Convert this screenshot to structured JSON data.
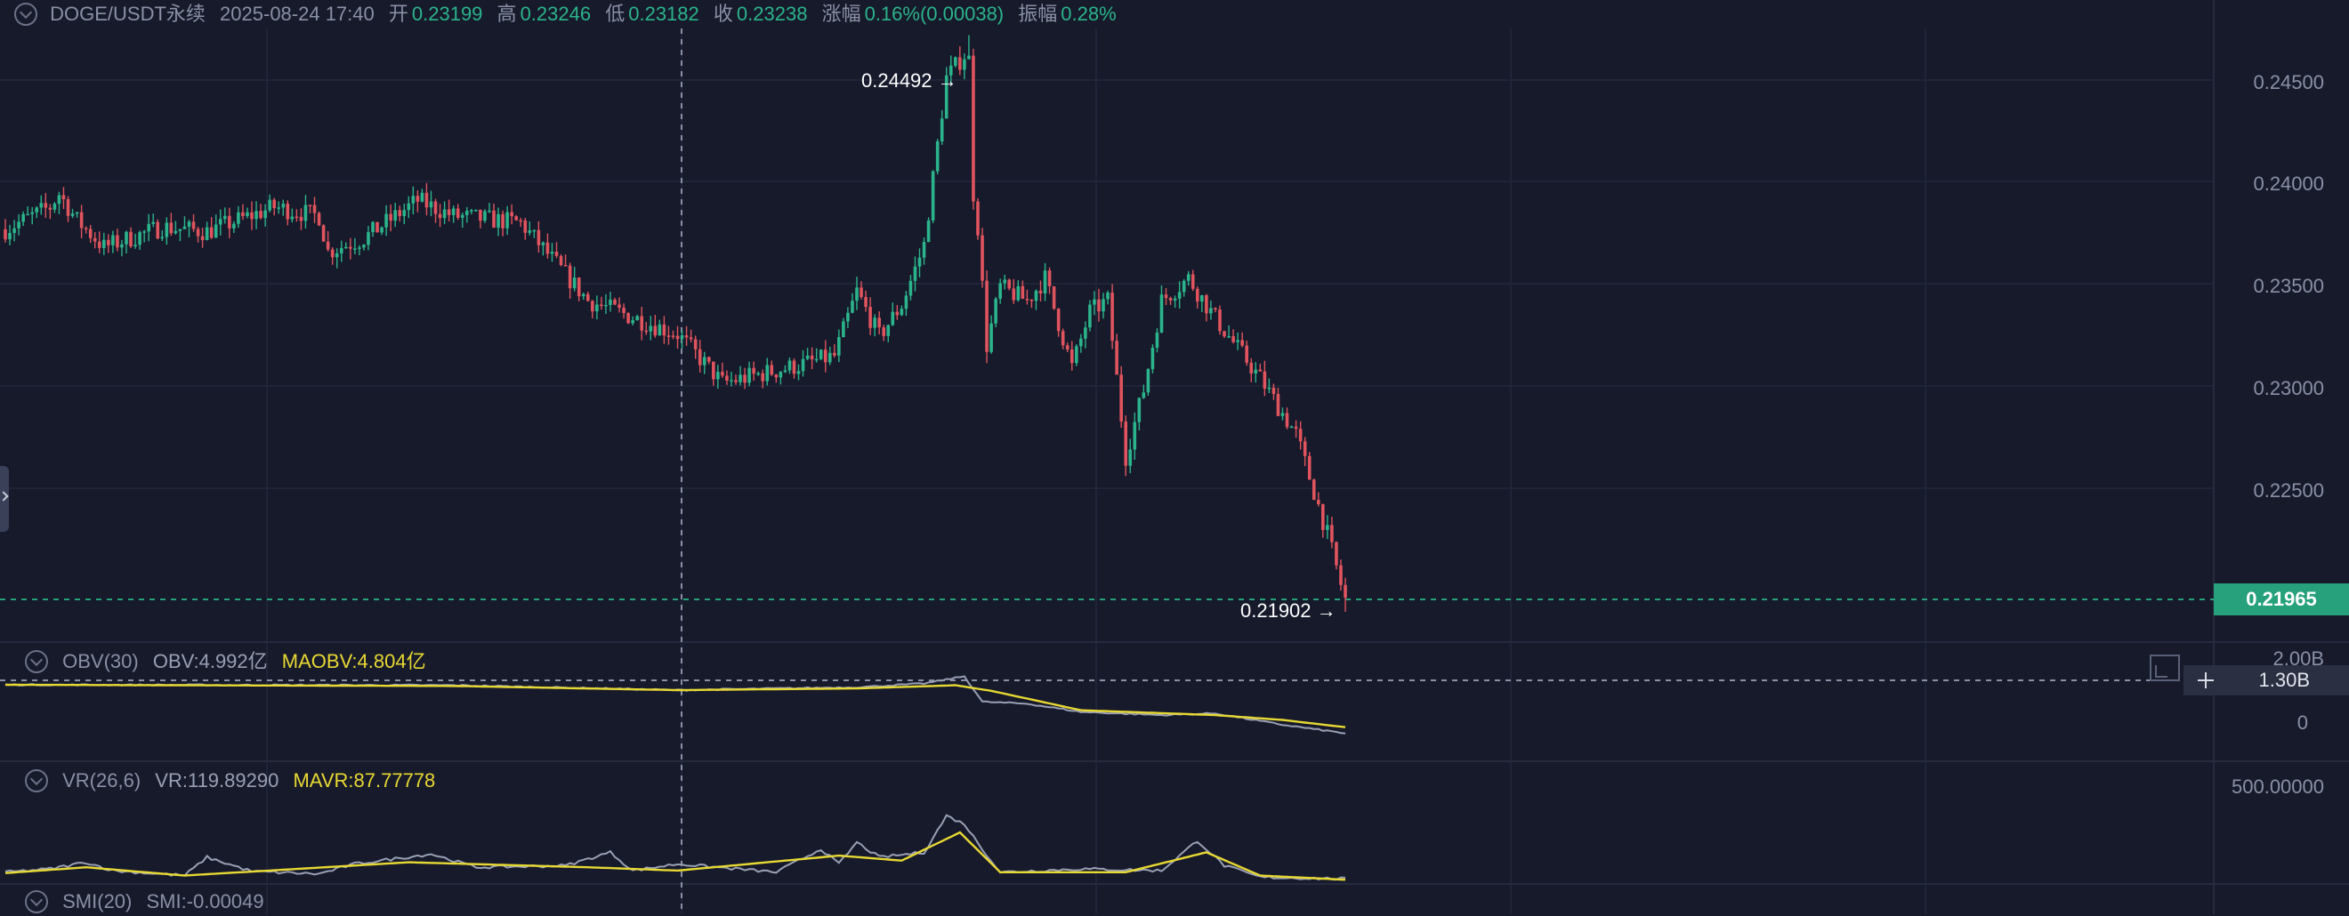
{
  "header": {
    "symbol": "DOGE/USDT永续",
    "datetime": "2025-08-24 17:40",
    "open_label": "开",
    "open": "0.23199",
    "high_label": "高",
    "high": "0.23246",
    "low_label": "低",
    "low": "0.23182",
    "close_label": "收",
    "close": "0.23238",
    "change_label": "涨幅",
    "change": "0.16%(0.00038)",
    "amplitude_label": "振幅",
    "amplitude": "0.28%"
  },
  "indicators": {
    "obv": {
      "name": "OBV(30)",
      "obv_text": "OBV:4.992亿",
      "maobv_text": "MAOBV:4.804亿"
    },
    "vr": {
      "name": "VR(26,6)",
      "vr_text": "VR:119.89290",
      "mavr_text": "MAVR:87.77778"
    },
    "smi": {
      "name": "SMI(20)",
      "smi_text": "SMI:-0.00049"
    }
  },
  "price_axis": {
    "ticks": [
      "0.24500",
      "0.24000",
      "0.23500",
      "0.23000",
      "0.22500"
    ],
    "current_price": "0.21965"
  },
  "obv_axis": {
    "ticks": [
      "2.00B",
      "0"
    ],
    "crosshair_value": "1.30B"
  },
  "vr_axis": {
    "ticks": [
      "500.00000"
    ]
  },
  "extremes": {
    "max_label": "0.24492",
    "min_label": "0.21902"
  },
  "colors": {
    "background": "#161a2b",
    "up": "#2bb48b",
    "down": "#e0545d",
    "obv_line": "#9aa0b4",
    "ma_line": "#e8d832",
    "current_price": "#26a17b"
  },
  "chart_data": {
    "type": "candlestick",
    "candles": 300,
    "close_anchors": [
      [
        0,
        0.2362
      ],
      [
        10,
        0.2372
      ],
      [
        12,
        0.2378
      ],
      [
        16,
        0.2366
      ],
      [
        22,
        0.2354
      ],
      [
        35,
        0.2363
      ],
      [
        45,
        0.2361
      ],
      [
        60,
        0.2372
      ],
      [
        70,
        0.2368
      ],
      [
        72,
        0.2352
      ],
      [
        80,
        0.2358
      ],
      [
        92,
        0.2375
      ],
      [
        100,
        0.2368
      ],
      [
        115,
        0.2365
      ],
      [
        130,
        0.233
      ],
      [
        150,
        0.2315
      ],
      [
        160,
        0.2293
      ],
      [
        175,
        0.23
      ],
      [
        185,
        0.2305
      ],
      [
        190,
        0.2334
      ],
      [
        195,
        0.2314
      ],
      [
        200,
        0.2328
      ],
      [
        205,
        0.2355
      ],
      [
        210,
        0.243
      ],
      [
        215,
        0.2443
      ],
      [
        216,
        0.2378
      ],
      [
        217,
        0.2363
      ],
      [
        219,
        0.231
      ],
      [
        222,
        0.2336
      ],
      [
        228,
        0.233
      ],
      [
        232,
        0.234
      ],
      [
        238,
        0.23
      ],
      [
        242,
        0.2325
      ],
      [
        246,
        0.233
      ],
      [
        250,
        0.226
      ],
      [
        254,
        0.229
      ],
      [
        258,
        0.233
      ],
      [
        264,
        0.234
      ],
      [
        270,
        0.2322
      ],
      [
        280,
        0.2295
      ],
      [
        288,
        0.227
      ],
      [
        295,
        0.2225
      ],
      [
        299,
        0.2195
      ]
    ],
    "high_max": 0.24492,
    "low_min": 0.21902,
    "current_price": 0.21965,
    "ylim": [
      0.2183,
      0.2465
    ],
    "obv_series": {
      "ylim": [
        -0.9,
        2.4
      ],
      "obv_anchors": [
        [
          0,
          1.3
        ],
        [
          100,
          1.28
        ],
        [
          150,
          1.08
        ],
        [
          190,
          1.2
        ],
        [
          205,
          1.35
        ],
        [
          214,
          1.65
        ],
        [
          218,
          0.6
        ],
        [
          228,
          0.52
        ],
        [
          240,
          0.18
        ],
        [
          258,
          0.05
        ],
        [
          270,
          0.12
        ],
        [
          285,
          -0.35
        ],
        [
          299,
          -0.7
        ]
      ],
      "ma_anchors": [
        [
          0,
          1.3
        ],
        [
          100,
          1.25
        ],
        [
          150,
          1.08
        ],
        [
          190,
          1.15
        ],
        [
          212,
          1.28
        ],
        [
          220,
          1.05
        ],
        [
          240,
          0.25
        ],
        [
          270,
          0.05
        ],
        [
          285,
          -0.15
        ],
        [
          299,
          -0.45
        ]
      ]
    },
    "vr_series": {
      "ylim": [
        0,
        600
      ],
      "vr_anchors": [
        [
          0,
          60
        ],
        [
          10,
          80
        ],
        [
          18,
          120
        ],
        [
          24,
          70
        ],
        [
          40,
          40
        ],
        [
          45,
          150
        ],
        [
          55,
          65
        ],
        [
          70,
          50
        ],
        [
          78,
          110
        ],
        [
          95,
          170
        ],
        [
          105,
          90
        ],
        [
          125,
          100
        ],
        [
          135,
          180
        ],
        [
          140,
          70
        ],
        [
          150,
          110
        ],
        [
          172,
          60
        ],
        [
          182,
          200
        ],
        [
          186,
          110
        ],
        [
          190,
          240
        ],
        [
          195,
          150
        ],
        [
          205,
          180
        ],
        [
          210,
          400
        ],
        [
          214,
          350
        ],
        [
          218,
          200
        ],
        [
          222,
          60
        ],
        [
          240,
          80
        ],
        [
          258,
          70
        ],
        [
          266,
          250
        ],
        [
          272,
          100
        ],
        [
          280,
          30
        ],
        [
          299,
          20
        ]
      ],
      "ma_anchors": [
        [
          0,
          55
        ],
        [
          18,
          90
        ],
        [
          40,
          40
        ],
        [
          90,
          120
        ],
        [
          130,
          90
        ],
        [
          150,
          70
        ],
        [
          186,
          160
        ],
        [
          200,
          130
        ],
        [
          213,
          300
        ],
        [
          222,
          60
        ],
        [
          250,
          60
        ],
        [
          268,
          180
        ],
        [
          280,
          40
        ],
        [
          299,
          15
        ]
      ]
    }
  }
}
